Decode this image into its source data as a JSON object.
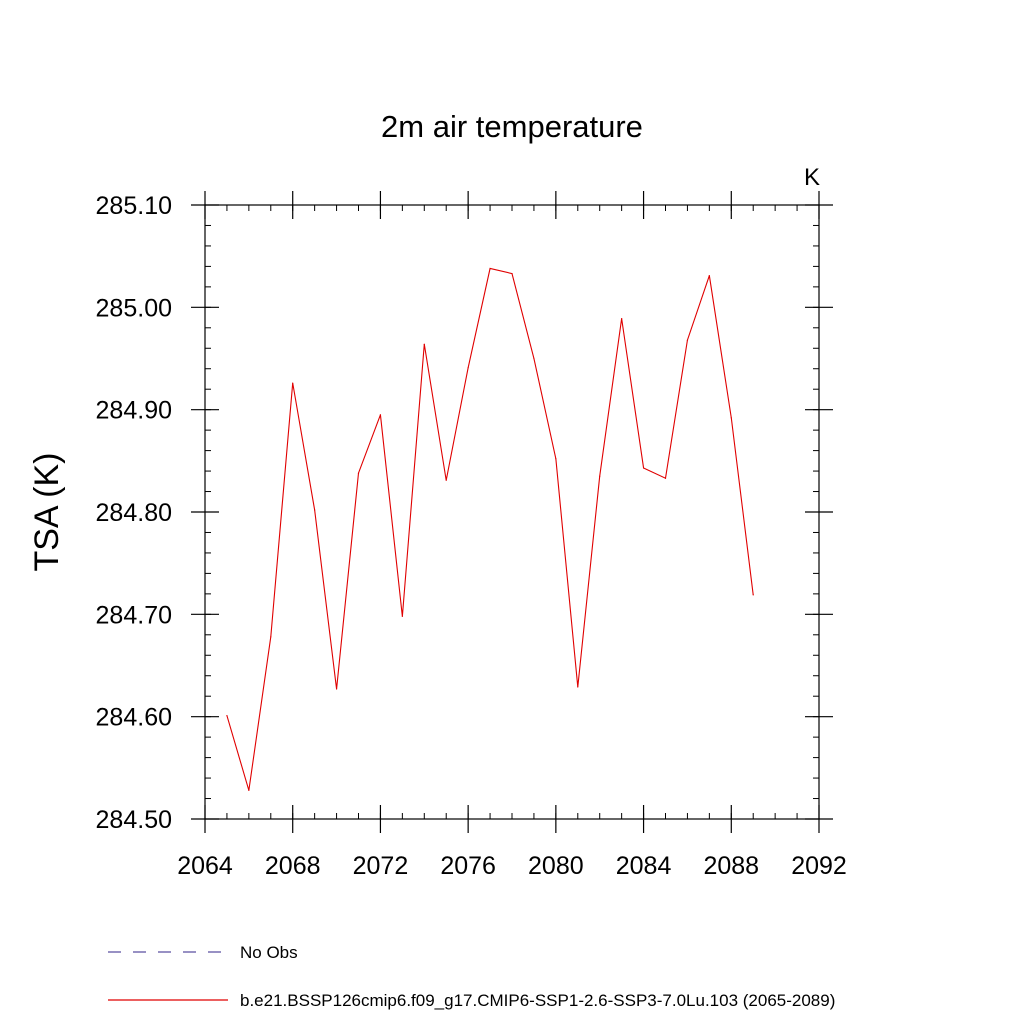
{
  "chart_data": {
    "type": "line",
    "title": "2m air temperature",
    "unit_label": "K",
    "xlabel": "",
    "ylabel": "TSA  (K)",
    "xlim": [
      2064,
      2092
    ],
    "ylim": [
      284.5,
      285.1
    ],
    "x_ticks": [
      2064,
      2068,
      2072,
      2076,
      2080,
      2084,
      2088,
      2092
    ],
    "x_tick_labels": [
      "2064",
      "2068",
      "2072",
      "2076",
      "2080",
      "2084",
      "2088",
      "2092"
    ],
    "y_ticks": [
      284.5,
      284.6,
      284.7,
      284.8,
      284.9,
      285.0,
      285.1
    ],
    "y_tick_labels": [
      "284.50",
      "284.60",
      "284.70",
      "284.80",
      "284.90",
      "285.00",
      "285.10"
    ],
    "x_minor_step": 1,
    "y_minor_step": 0.02,
    "series": [
      {
        "name": "b.e21.BSSP126cmip6.f09_g17.CMIP6-SSP1-2.6-SSP3-7.0Lu.103 (2065-2089)",
        "color": "#e00000",
        "dash": "solid",
        "x": [
          2065,
          2066,
          2067,
          2068,
          2069,
          2070,
          2071,
          2072,
          2073,
          2074,
          2075,
          2076,
          2077,
          2078,
          2079,
          2080,
          2081,
          2082,
          2083,
          2084,
          2085,
          2086,
          2087,
          2088,
          2089
        ],
        "y": [
          284.601,
          284.528,
          284.678,
          284.926,
          284.802,
          284.627,
          284.838,
          284.895,
          284.698,
          284.964,
          284.831,
          284.941,
          285.038,
          285.033,
          284.95,
          284.852,
          284.629,
          284.835,
          284.989,
          284.843,
          284.833,
          284.968,
          285.031,
          284.892,
          284.719
        ]
      }
    ],
    "legend": [
      {
        "label": "No Obs",
        "color": "#5b4fa0",
        "dash": "dashed"
      },
      {
        "label": "b.e21.BSSP126cmip6.f09_g17.CMIP6-SSP1-2.6-SSP3-7.0Lu.103 (2065-2089)",
        "color": "#e00000",
        "dash": "solid"
      }
    ],
    "legend_position": "bottom",
    "grid": false
  }
}
